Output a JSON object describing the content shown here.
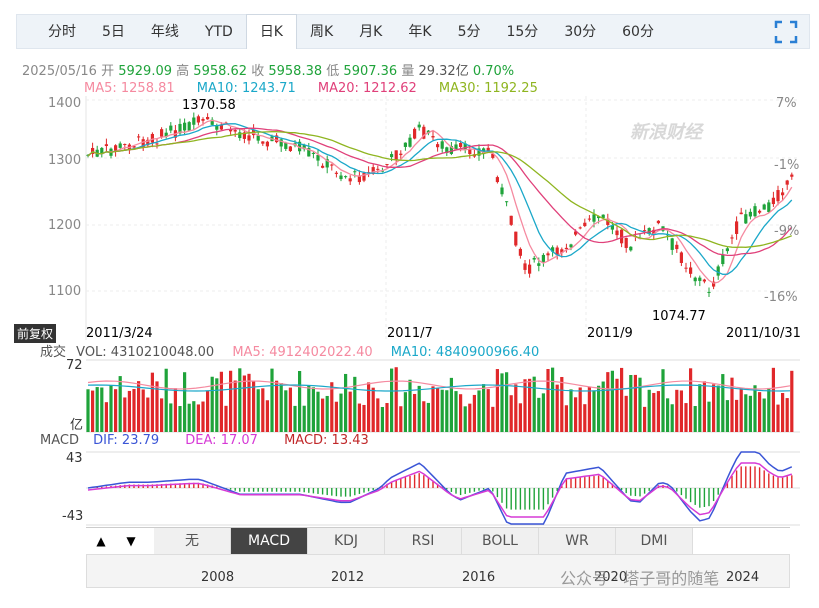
{
  "tabs": [
    "分时",
    "5日",
    "年线",
    "YTD",
    "日K",
    "周K",
    "月K",
    "年K",
    "5分",
    "15分",
    "30分",
    "60分"
  ],
  "active_tab": "日K",
  "info": {
    "date": "2025/05/16",
    "open_label": "开",
    "open": "5929.09",
    "high_label": "高",
    "high": "5958.62",
    "close_label": "收",
    "close": "5958.38",
    "low_label": "低",
    "low": "5907.36",
    "vol_label": "量",
    "vol": "29.32亿",
    "pct": "0.70%"
  },
  "ma": {
    "ma5": "MA5: 1258.81",
    "ma10": "MA10: 1243.71",
    "ma20": "MA20: 1212.62",
    "ma30": "MA30: 1192.25"
  },
  "colors": {
    "ma5": "#f58aa0",
    "ma10": "#1ba8c9",
    "ma20": "#e0407a",
    "ma30": "#8fb520",
    "up": "#e0282a",
    "down": "#1fa33a"
  },
  "price_axis": [
    "1400",
    "1300",
    "1200",
    "1100"
  ],
  "pct_axis": [
    "7%",
    "-1%",
    "-9%",
    "-16%"
  ],
  "annotations": {
    "high": "1370.58",
    "low": "1074.77"
  },
  "dates": [
    "2011/3/24",
    "2011/7",
    "2011/9",
    "2011/10/31"
  ],
  "adjust_label": "前复权",
  "sina_watermark": "新浪财经",
  "volume": {
    "title": "成交",
    "vol": "VOL: 4310210048.00",
    "ma5": "MA5: 4912402022.40",
    "ma10": "MA10: 4840900966.40",
    "top": "72",
    "unit": "亿"
  },
  "macd": {
    "title": "MACD",
    "dif": "DIF: 23.79",
    "dea": "DEA: 17.07",
    "macd": "MACD: 13.43",
    "top": "43",
    "bottom": "-43"
  },
  "indicator_tabs": [
    "无",
    "MACD",
    "KDJ",
    "RSI",
    "BOLL",
    "WR",
    "DMI"
  ],
  "active_indicator": "MACD",
  "years": [
    "2008",
    "2012",
    "2016",
    "2020",
    "2024"
  ],
  "footer_watermark": "公众号 · 塔子哥的随笔"
}
